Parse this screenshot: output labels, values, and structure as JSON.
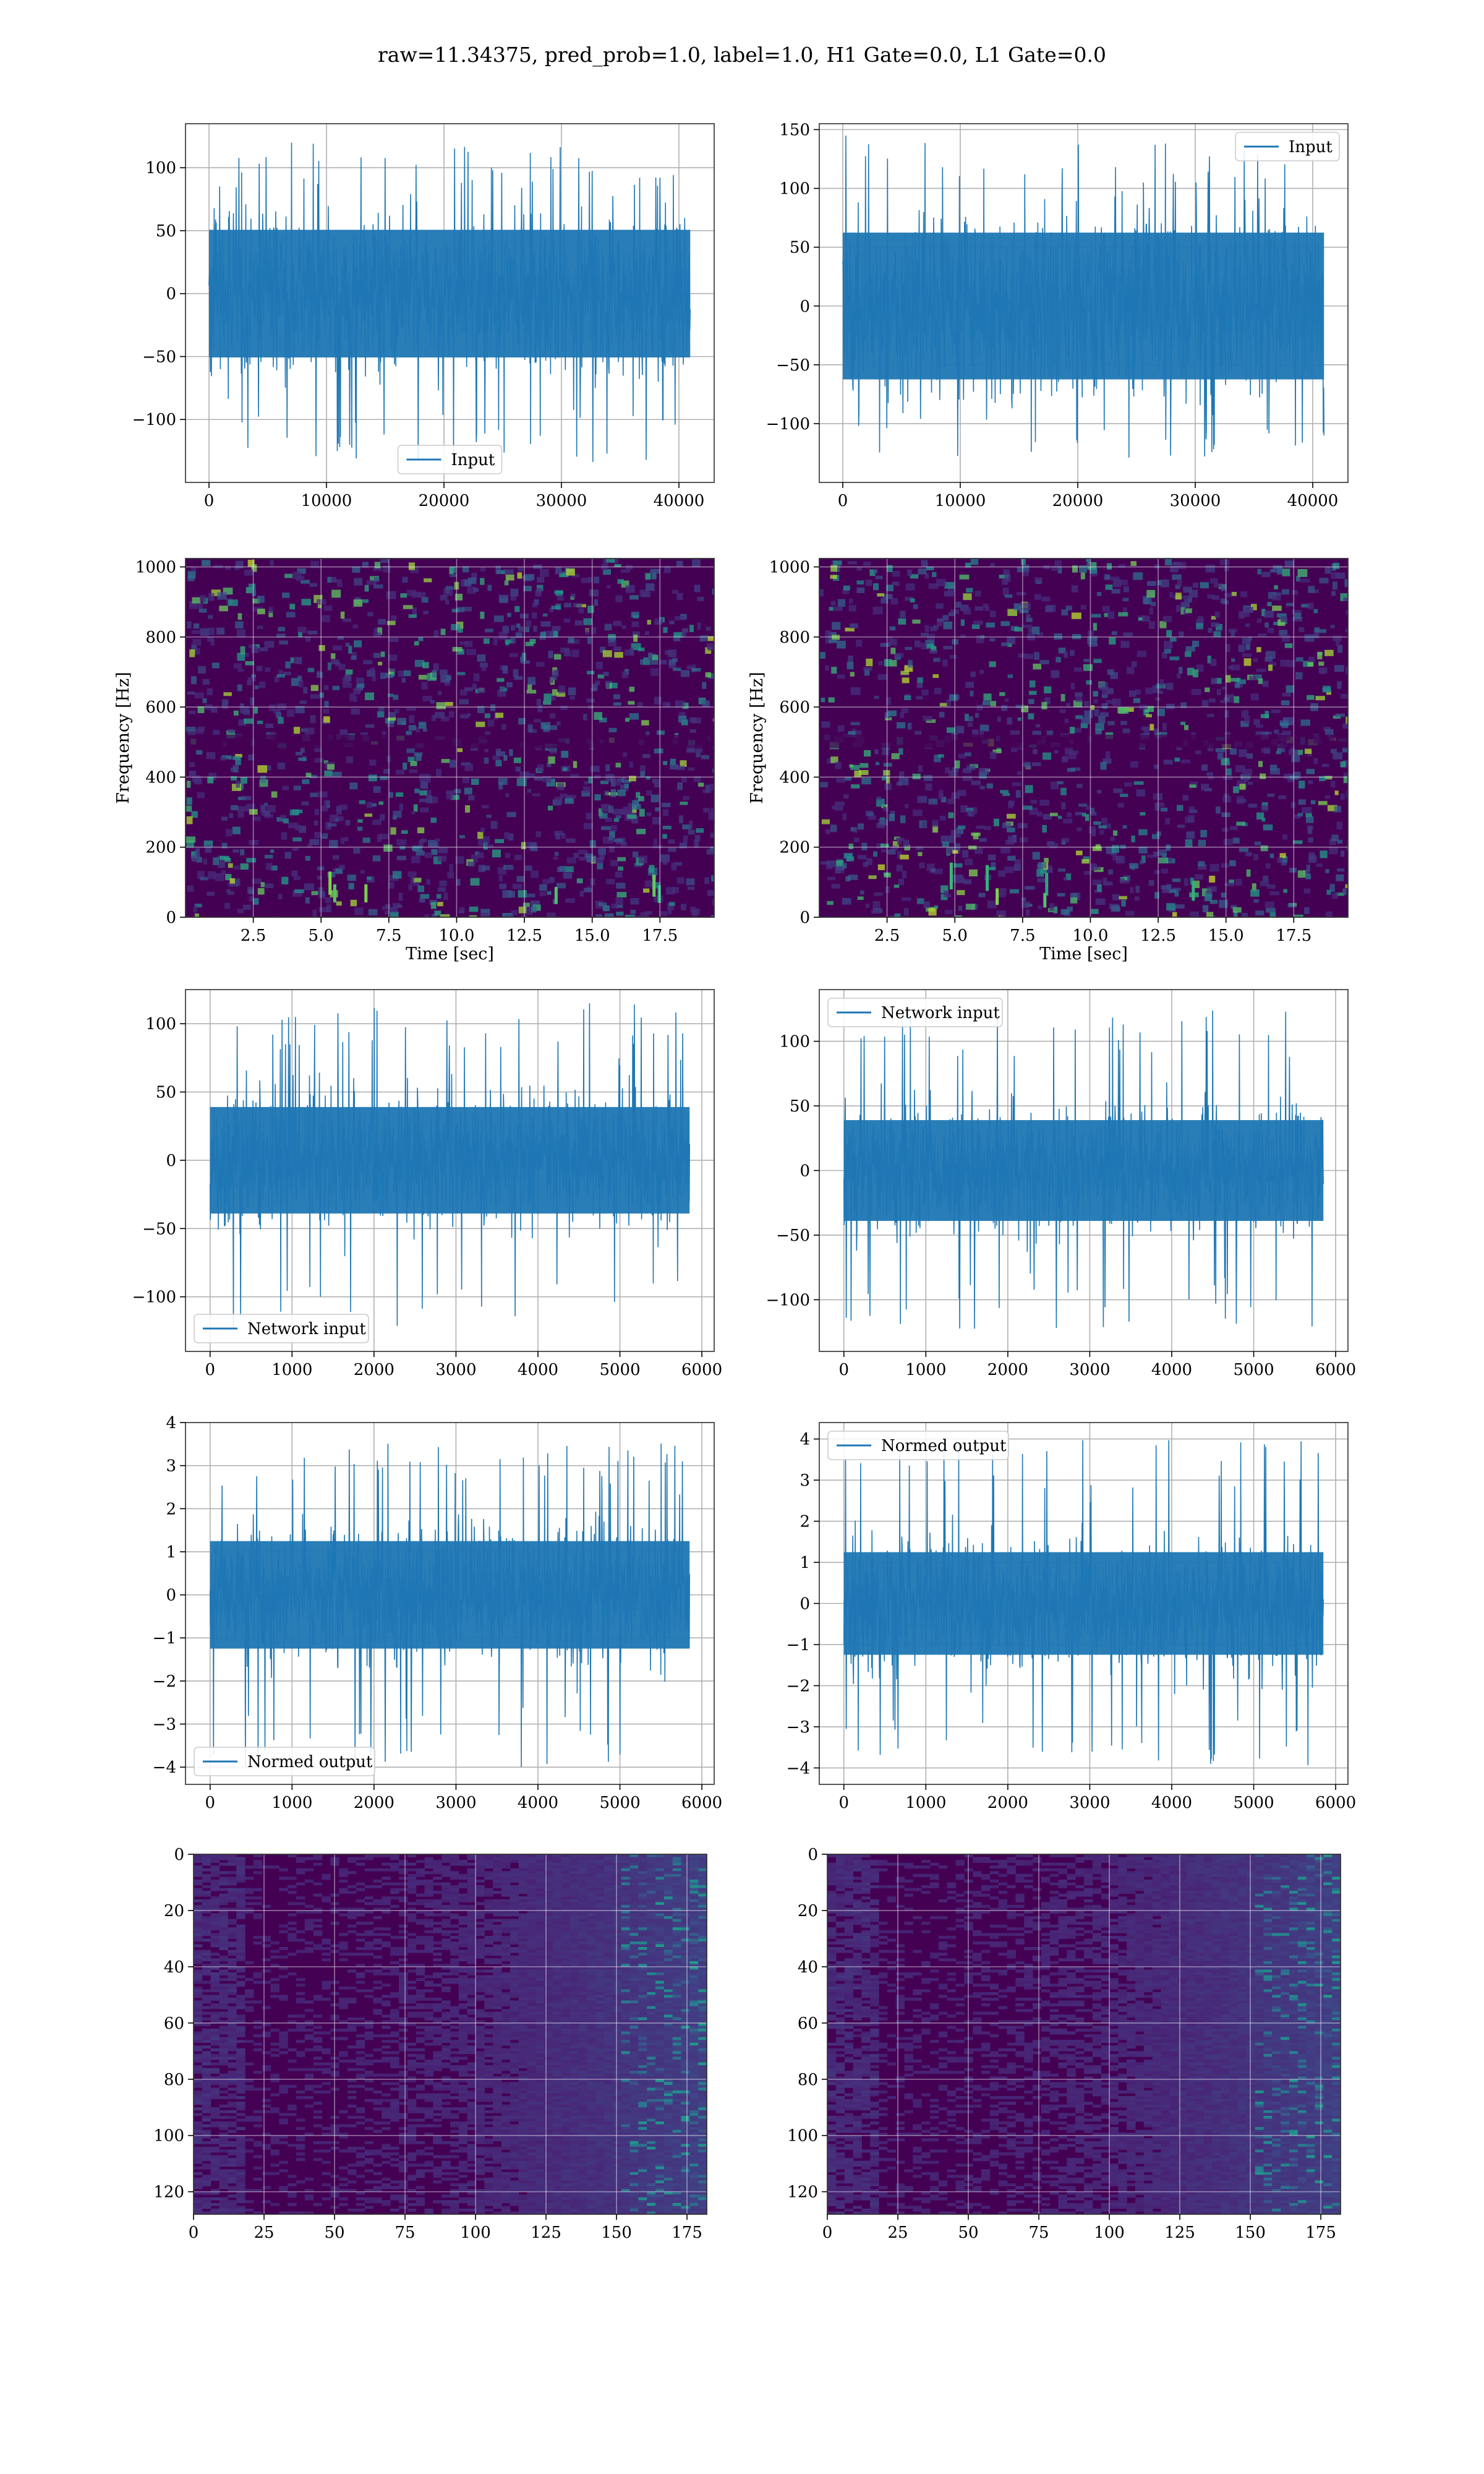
{
  "figure": {
    "suptitle": "raw=11.34375, pred_prob=1.0, label=1.0, H1 Gate=0.0, L1 Gate=0.0"
  },
  "colors": {
    "line": "#1f77b4",
    "grid": "#b0b0b0",
    "viridis_dark": "#440154",
    "viridis_mid": "#21908d",
    "viridis_bright": "#5ec962"
  },
  "chart_data": [
    {
      "id": "h1-input",
      "type": "line",
      "row": 1,
      "col": 1,
      "xlim": [
        -2000,
        43000
      ],
      "ylim": [
        -150,
        135
      ],
      "xticks": [
        0,
        10000,
        20000,
        30000,
        40000
      ],
      "yticks": [
        -100,
        -50,
        0,
        50,
        100
      ],
      "xticklabels": [
        "0",
        "10000",
        "20000",
        "30000",
        "40000"
      ],
      "yticklabels": [
        "−100",
        "−50",
        "0",
        "50",
        "100"
      ],
      "series": [
        {
          "name": "Input",
          "x_range": [
            0,
            40960
          ],
          "typical_amplitude": 65,
          "peak_range": [
            -135,
            120
          ]
        }
      ],
      "legend": "lower center",
      "xlabel": "",
      "ylabel": "",
      "grid": true
    },
    {
      "id": "l1-input",
      "type": "line",
      "row": 1,
      "col": 2,
      "xlim": [
        -2000,
        43000
      ],
      "ylim": [
        -150,
        155
      ],
      "xticks": [
        0,
        10000,
        20000,
        30000,
        40000
      ],
      "yticks": [
        -100,
        -50,
        0,
        50,
        100,
        150
      ],
      "xticklabels": [
        "0",
        "10000",
        "20000",
        "30000",
        "40000"
      ],
      "yticklabels": [
        "−100",
        "−50",
        "0",
        "50",
        "100",
        "150"
      ],
      "series": [
        {
          "name": "Input",
          "x_range": [
            0,
            40960
          ],
          "typical_amplitude": 80,
          "peak_range": [
            -130,
            145
          ]
        }
      ],
      "legend": "upper right",
      "xlabel": "",
      "ylabel": "",
      "grid": true
    },
    {
      "id": "h1-spectrogram",
      "type": "heatmap",
      "row": 2,
      "col": 1,
      "xlim": [
        0,
        19.5
      ],
      "ylim": [
        0,
        1024
      ],
      "xticks": [
        2.5,
        5.0,
        7.5,
        10.0,
        12.5,
        15.0,
        17.5
      ],
      "yticks": [
        0,
        200,
        400,
        600,
        800,
        1000
      ],
      "xticklabels": [
        "2.5",
        "5.0",
        "7.5",
        "10.0",
        "12.5",
        "15.0",
        "17.5"
      ],
      "yticklabels": [
        "0",
        "200",
        "400",
        "600",
        "800",
        "1000"
      ],
      "xlabel": "Time [sec]",
      "ylabel": "Frequency [Hz]",
      "colormap": "viridis",
      "grid": true
    },
    {
      "id": "l1-spectrogram",
      "type": "heatmap",
      "row": 2,
      "col": 2,
      "xlim": [
        0,
        19.5
      ],
      "ylim": [
        0,
        1024
      ],
      "xticks": [
        2.5,
        5.0,
        7.5,
        10.0,
        12.5,
        15.0,
        17.5
      ],
      "yticks": [
        0,
        200,
        400,
        600,
        800,
        1000
      ],
      "xticklabels": [
        "2.5",
        "5.0",
        "7.5",
        "10.0",
        "12.5",
        "15.0",
        "17.5"
      ],
      "yticklabels": [
        "0",
        "200",
        "400",
        "600",
        "800",
        "1000"
      ],
      "xlabel": "Time [sec]",
      "ylabel": "Frequency [Hz]",
      "colormap": "viridis",
      "grid": true
    },
    {
      "id": "h1-network-input",
      "type": "line",
      "row": 3,
      "col": 1,
      "xlim": [
        -300,
        6150
      ],
      "ylim": [
        -140,
        125
      ],
      "xticks": [
        0,
        1000,
        2000,
        3000,
        4000,
        5000,
        6000
      ],
      "yticks": [
        -100,
        -50,
        0,
        50,
        100
      ],
      "xticklabels": [
        "0",
        "1000",
        "2000",
        "3000",
        "4000",
        "5000",
        "6000"
      ],
      "yticklabels": [
        "−100",
        "−50",
        "0",
        "50",
        "100"
      ],
      "series": [
        {
          "name": "Network input",
          "x_range": [
            0,
            5850
          ],
          "typical_amplitude": 50,
          "peak_range": [
            -125,
            115
          ]
        }
      ],
      "legend": "lower left",
      "xlabel": "",
      "ylabel": "",
      "grid": true
    },
    {
      "id": "l1-network-input",
      "type": "line",
      "row": 3,
      "col": 2,
      "xlim": [
        -300,
        6150
      ],
      "ylim": [
        -140,
        140
      ],
      "xticks": [
        0,
        1000,
        2000,
        3000,
        4000,
        5000,
        6000
      ],
      "yticks": [
        -100,
        -50,
        0,
        50,
        100
      ],
      "xticklabels": [
        "0",
        "1000",
        "2000",
        "3000",
        "4000",
        "5000",
        "6000"
      ],
      "yticklabels": [
        "−100",
        "−50",
        "0",
        "50",
        "100"
      ],
      "series": [
        {
          "name": "Network input",
          "x_range": [
            0,
            5850
          ],
          "typical_amplitude": 50,
          "peak_range": [
            -125,
            125
          ]
        }
      ],
      "legend": "upper left",
      "xlabel": "",
      "ylabel": "",
      "grid": true
    },
    {
      "id": "h1-normed-output",
      "type": "line",
      "row": 4,
      "col": 1,
      "xlim": [
        -300,
        6150
      ],
      "ylim": [
        -4.4,
        4.0
      ],
      "xticks": [
        0,
        1000,
        2000,
        3000,
        4000,
        5000,
        6000
      ],
      "yticks": [
        -4,
        -3,
        -2,
        -1,
        0,
        1,
        2,
        3,
        4
      ],
      "xticklabels": [
        "0",
        "1000",
        "2000",
        "3000",
        "4000",
        "5000",
        "6000"
      ],
      "yticklabels": [
        "−4",
        "−3",
        "−2",
        "−1",
        "0",
        "1",
        "2",
        "3",
        "4"
      ],
      "series": [
        {
          "name": "Normed output",
          "x_range": [
            0,
            5850
          ],
          "typical_amplitude": 1.6,
          "peak_range": [
            -4.0,
            3.6
          ]
        }
      ],
      "legend": "lower left",
      "xlabel": "",
      "ylabel": "",
      "grid": true
    },
    {
      "id": "l1-normed-output",
      "type": "line",
      "row": 4,
      "col": 2,
      "xlim": [
        -300,
        6150
      ],
      "ylim": [
        -4.4,
        4.4
      ],
      "xticks": [
        0,
        1000,
        2000,
        3000,
        4000,
        5000,
        6000
      ],
      "yticks": [
        -4,
        -3,
        -2,
        -1,
        0,
        1,
        2,
        3,
        4
      ],
      "xticklabels": [
        "0",
        "1000",
        "2000",
        "3000",
        "4000",
        "5000",
        "6000"
      ],
      "yticklabels": [
        "−4",
        "−3",
        "−2",
        "−1",
        "0",
        "1",
        "2",
        "3",
        "4"
      ],
      "series": [
        {
          "name": "Normed output",
          "x_range": [
            0,
            5850
          ],
          "typical_amplitude": 1.6,
          "peak_range": [
            -4.0,
            4.0
          ]
        }
      ],
      "legend": "upper left",
      "xlabel": "",
      "ylabel": "",
      "grid": true
    },
    {
      "id": "h1-feature-map",
      "type": "heatmap",
      "row": 5,
      "col": 1,
      "xlim": [
        0,
        182
      ],
      "ylim": [
        128,
        0
      ],
      "xticks": [
        0,
        25,
        50,
        75,
        100,
        125,
        150,
        175
      ],
      "yticks": [
        0,
        20,
        40,
        60,
        80,
        100,
        120
      ],
      "xticklabels": [
        "0",
        "25",
        "50",
        "75",
        "100",
        "125",
        "150",
        "175"
      ],
      "yticklabels": [
        "0",
        "20",
        "40",
        "60",
        "80",
        "100",
        "120"
      ],
      "xlabel": "",
      "ylabel": "",
      "colormap": "viridis",
      "grid": true
    },
    {
      "id": "l1-feature-map",
      "type": "heatmap",
      "row": 5,
      "col": 2,
      "xlim": [
        0,
        182
      ],
      "ylim": [
        128,
        0
      ],
      "xticks": [
        0,
        25,
        50,
        75,
        100,
        125,
        150,
        175
      ],
      "yticks": [
        0,
        20,
        40,
        60,
        80,
        100,
        120
      ],
      "xticklabels": [
        "0",
        "25",
        "50",
        "75",
        "100",
        "125",
        "150",
        "175"
      ],
      "yticklabels": [
        "0",
        "20",
        "40",
        "60",
        "80",
        "100",
        "120"
      ],
      "xlabel": "",
      "ylabel": "",
      "colormap": "viridis",
      "grid": true
    }
  ]
}
